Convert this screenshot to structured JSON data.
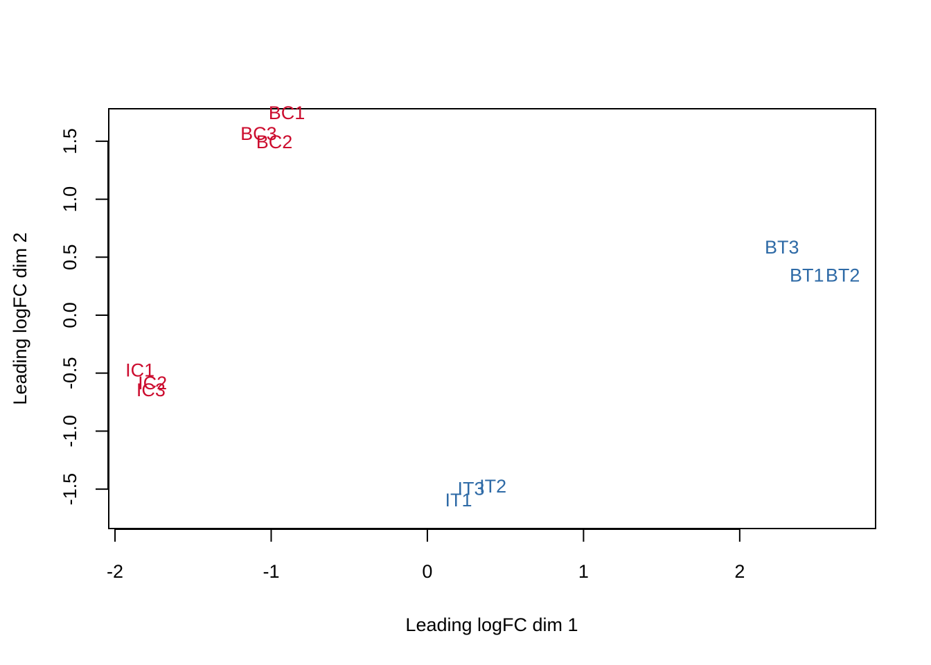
{
  "chart_data": {
    "type": "scatter",
    "title": "",
    "xlabel": "Leading logFC dim 1",
    "ylabel": "Leading logFC dim 2",
    "xlim": [
      -2.04,
      2.87
    ],
    "ylim": [
      -1.84,
      1.78
    ],
    "x_ticks": [
      {
        "value": -2,
        "label": "-2"
      },
      {
        "value": -1,
        "label": "-1"
      },
      {
        "value": 0,
        "label": "0"
      },
      {
        "value": 1,
        "label": "1"
      },
      {
        "value": 2,
        "label": "2"
      }
    ],
    "y_ticks": [
      {
        "value": -1.5,
        "label": "-1.5"
      },
      {
        "value": -1.0,
        "label": "-1.0"
      },
      {
        "value": -0.5,
        "label": "-0.5"
      },
      {
        "value": 0.0,
        "label": "0.0"
      },
      {
        "value": 0.5,
        "label": "0.5"
      },
      {
        "value": 1.0,
        "label": "1.0"
      },
      {
        "value": 1.5,
        "label": "1.5"
      }
    ],
    "grid": false,
    "legend": "none",
    "colors": {
      "C": "#CC0C2E",
      "T": "#2E6AA6"
    },
    "points": [
      {
        "label": "BC1",
        "x": -0.9,
        "y": 1.75,
        "group": "C"
      },
      {
        "label": "BC3",
        "x": -1.08,
        "y": 1.57,
        "group": "C"
      },
      {
        "label": "BC2",
        "x": -0.98,
        "y": 1.5,
        "group": "C"
      },
      {
        "label": "BT3",
        "x": 2.27,
        "y": 0.59,
        "group": "T"
      },
      {
        "label": "BT1",
        "x": 2.43,
        "y": 0.35,
        "group": "T"
      },
      {
        "label": "BT2",
        "x": 2.66,
        "y": 0.35,
        "group": "T"
      },
      {
        "label": "IC1",
        "x": -1.84,
        "y": -0.47,
        "group": "C"
      },
      {
        "label": "IC2",
        "x": -1.76,
        "y": -0.58,
        "group": "C"
      },
      {
        "label": "IC3",
        "x": -1.77,
        "y": -0.64,
        "group": "C"
      },
      {
        "label": "IT3",
        "x": 0.28,
        "y": -1.49,
        "group": "T"
      },
      {
        "label": "IT2",
        "x": 0.42,
        "y": -1.47,
        "group": "T"
      },
      {
        "label": "IT1",
        "x": 0.2,
        "y": -1.59,
        "group": "T"
      }
    ]
  }
}
